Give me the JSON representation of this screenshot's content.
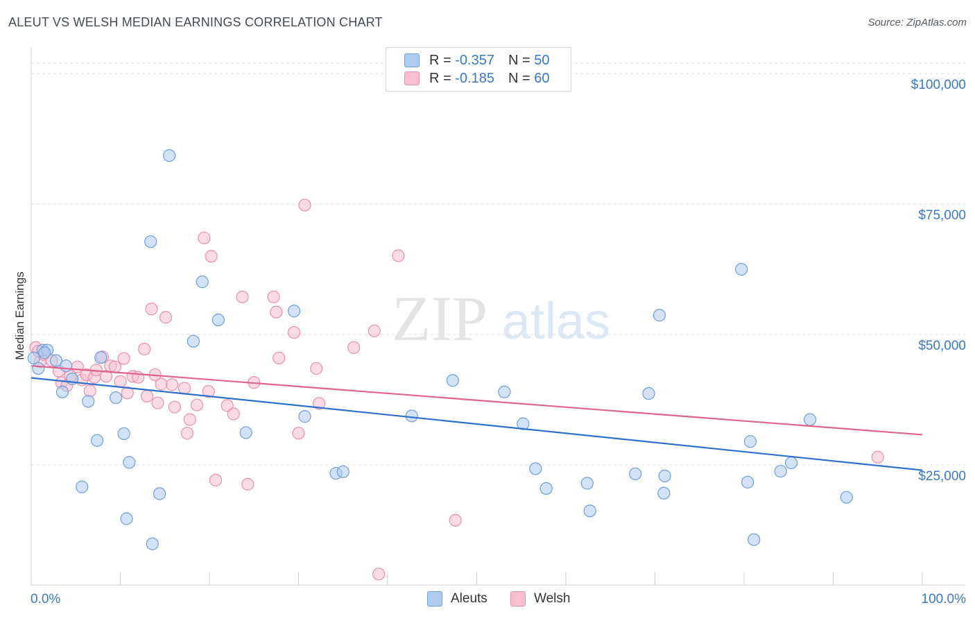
{
  "title": "ALEUT VS WELSH MEDIAN EARNINGS CORRELATION CHART",
  "source": "Source: ZipAtlas.com",
  "watermark": {
    "zip": "ZIP",
    "atlas": "atlas"
  },
  "colors": {
    "aleut_fill": "#aecbf0",
    "aleut_stroke": "#6f9fd8",
    "aleut_line": "#2f6fcc",
    "welsh_fill": "#f7bfd0",
    "welsh_stroke": "#e891ad",
    "welsh_line": "#e0628e",
    "axis_label": "#3a78c8"
  },
  "legend": {
    "aleut": {
      "r_label": "R = ",
      "r_value": "-0.357",
      "n_label": "N = ",
      "n_value": "50"
    },
    "welsh": {
      "r_label": "R = ",
      "r_value": "-0.185",
      "n_label": "N = ",
      "n_value": "60"
    }
  },
  "bottom_legend": {
    "aleut": "Aleuts",
    "welsh": "Welsh"
  },
  "chart_data": {
    "type": "scatter",
    "title": "ALEUT VS WELSH MEDIAN EARNINGS CORRELATION CHART",
    "xlabel": "",
    "ylabel": "Median Earnings",
    "xlim": [
      0,
      100
    ],
    "ylim": [
      2000,
      104000
    ],
    "x_tick_labels": [
      "0.0%",
      "100.0%"
    ],
    "y_ticks": [
      25000,
      50000,
      75000,
      100000
    ],
    "y_tick_labels": [
      "$25,000",
      "$50,000",
      "$75,000",
      "$100,000"
    ],
    "grid": "horizontal dashed",
    "legend_position": "top-center",
    "series": [
      {
        "name": "Aleuts",
        "trend": {
          "x": [
            0,
            100
          ],
          "y": [
            41700,
            24000
          ]
        },
        "points": [
          [
            0.3,
            45500
          ],
          [
            0.8,
            43500
          ],
          [
            1.3,
            47000
          ],
          [
            1.8,
            47000
          ],
          [
            2.8,
            45000
          ],
          [
            3.5,
            39000
          ],
          [
            3.9,
            44000
          ],
          [
            4.6,
            41500
          ],
          [
            6.4,
            37200
          ],
          [
            5.7,
            20800
          ],
          [
            7.4,
            29700
          ],
          [
            7.8,
            45600
          ],
          [
            9.5,
            37900
          ],
          [
            10.4,
            31000
          ],
          [
            10.7,
            14700
          ],
          [
            11.0,
            25500
          ],
          [
            13.4,
            67800
          ],
          [
            13.6,
            9900
          ],
          [
            14.4,
            19500
          ],
          [
            15.5,
            84300
          ],
          [
            18.2,
            48700
          ],
          [
            19.2,
            60100
          ],
          [
            21.0,
            52800
          ],
          [
            24.1,
            31200
          ],
          [
            29.5,
            54500
          ],
          [
            30.7,
            34300
          ],
          [
            34.2,
            23400
          ],
          [
            35.0,
            23700
          ],
          [
            42.7,
            34400
          ],
          [
            47.3,
            41200
          ],
          [
            53.1,
            39000
          ],
          [
            55.2,
            32900
          ],
          [
            56.6,
            24300
          ],
          [
            57.8,
            20500
          ],
          [
            62.4,
            21500
          ],
          [
            62.7,
            16200
          ],
          [
            67.8,
            23300
          ],
          [
            69.3,
            38700
          ],
          [
            70.5,
            53700
          ],
          [
            71.0,
            19600
          ],
          [
            71.1,
            22900
          ],
          [
            79.7,
            62500
          ],
          [
            80.4,
            21700
          ],
          [
            80.7,
            29500
          ],
          [
            81.1,
            10700
          ],
          [
            84.1,
            23800
          ],
          [
            85.3,
            25400
          ],
          [
            87.4,
            33700
          ],
          [
            91.5,
            18800
          ],
          [
            1.5,
            46500
          ]
        ]
      },
      {
        "name": "Welsh",
        "trend": {
          "x": [
            0,
            100
          ],
          "y": [
            44000,
            30800
          ]
        },
        "points": [
          [
            0.5,
            47500
          ],
          [
            1.0,
            44800
          ],
          [
            1.4,
            46200
          ],
          [
            2.3,
            45000
          ],
          [
            3.1,
            43000
          ],
          [
            3.4,
            40800
          ],
          [
            4.0,
            40200
          ],
          [
            4.4,
            42000
          ],
          [
            5.2,
            43800
          ],
          [
            5.7,
            41300
          ],
          [
            6.2,
            42300
          ],
          [
            6.6,
            39200
          ],
          [
            7.1,
            41800
          ],
          [
            7.3,
            43200
          ],
          [
            8.0,
            45700
          ],
          [
            8.4,
            42000
          ],
          [
            8.9,
            44000
          ],
          [
            9.4,
            43800
          ],
          [
            10.0,
            41000
          ],
          [
            10.4,
            45400
          ],
          [
            10.8,
            38800
          ],
          [
            11.4,
            42000
          ],
          [
            12.0,
            41800
          ],
          [
            12.7,
            47200
          ],
          [
            13.0,
            38200
          ],
          [
            13.5,
            54900
          ],
          [
            14.2,
            36900
          ],
          [
            14.6,
            40500
          ],
          [
            15.1,
            53300
          ],
          [
            15.8,
            40400
          ],
          [
            16.1,
            36100
          ],
          [
            17.2,
            39700
          ],
          [
            17.5,
            31100
          ],
          [
            17.8,
            33700
          ],
          [
            18.6,
            36500
          ],
          [
            19.4,
            68500
          ],
          [
            19.9,
            39100
          ],
          [
            20.2,
            65000
          ],
          [
            20.7,
            22100
          ],
          [
            22.0,
            36400
          ],
          [
            22.7,
            34800
          ],
          [
            23.7,
            57200
          ],
          [
            24.3,
            21300
          ],
          [
            25.0,
            40800
          ],
          [
            27.2,
            57200
          ],
          [
            27.5,
            54300
          ],
          [
            27.8,
            45500
          ],
          [
            29.5,
            50400
          ],
          [
            30.0,
            31100
          ],
          [
            30.7,
            74800
          ],
          [
            32.0,
            43500
          ],
          [
            32.3,
            36800
          ],
          [
            36.2,
            47500
          ],
          [
            38.5,
            50700
          ],
          [
            39.0,
            4100
          ],
          [
            41.2,
            65100
          ],
          [
            47.6,
            14400
          ],
          [
            95.0,
            26500
          ],
          [
            0.8,
            46800
          ],
          [
            13.9,
            42300
          ]
        ]
      }
    ]
  }
}
